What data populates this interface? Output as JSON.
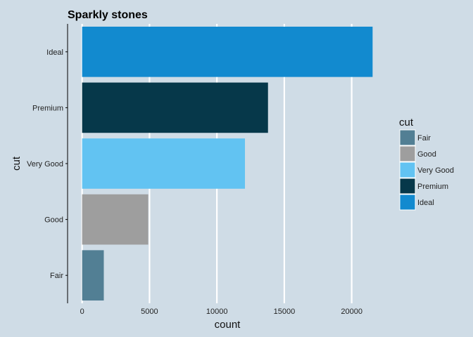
{
  "chart_data": {
    "type": "bar",
    "orientation": "horizontal",
    "title": "Sparkly stones",
    "xlabel": "count",
    "ylabel": "cut",
    "categories": [
      "Fair",
      "Good",
      "Very Good",
      "Premium",
      "Ideal"
    ],
    "values": [
      1610,
      4906,
      12082,
      13791,
      21551
    ],
    "colors": [
      "#527f94",
      "#9e9e9e",
      "#62c3f2",
      "#06384a",
      "#128acf"
    ],
    "x_ticks": [
      0,
      5000,
      10000,
      15000,
      20000
    ],
    "xlim": [
      -1078,
      22629
    ],
    "grid": "vertical-major",
    "legend": {
      "title": "cut",
      "placement": "right",
      "items": [
        "Fair",
        "Good",
        "Very Good",
        "Premium",
        "Ideal"
      ]
    }
  }
}
